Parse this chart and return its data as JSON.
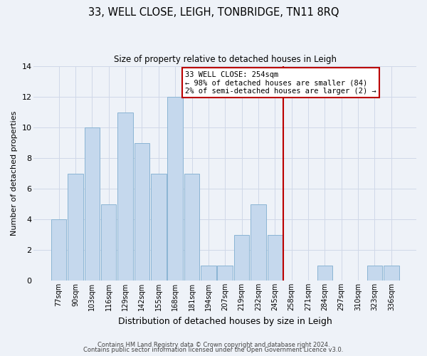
{
  "title": "33, WELL CLOSE, LEIGH, TONBRIDGE, TN11 8RQ",
  "subtitle": "Size of property relative to detached houses in Leigh",
  "xlabel": "Distribution of detached houses by size in Leigh",
  "ylabel": "Number of detached properties",
  "bar_labels": [
    "77sqm",
    "90sqm",
    "103sqm",
    "116sqm",
    "129sqm",
    "142sqm",
    "155sqm",
    "168sqm",
    "181sqm",
    "194sqm",
    "207sqm",
    "219sqm",
    "232sqm",
    "245sqm",
    "258sqm",
    "271sqm",
    "284sqm",
    "297sqm",
    "310sqm",
    "323sqm",
    "336sqm"
  ],
  "bar_values": [
    4,
    7,
    10,
    5,
    11,
    9,
    7,
    12,
    7,
    1,
    1,
    3,
    5,
    3,
    0,
    0,
    1,
    0,
    0,
    1,
    1
  ],
  "bar_color": "#c5d8ed",
  "bar_edgecolor": "#8ab4d4",
  "grid_color": "#d0d8e8",
  "background_color": "#eef2f8",
  "annotation_line1": "33 WELL CLOSE: 254sqm",
  "annotation_line2": "← 98% of detached houses are smaller (84)",
  "annotation_line3": "2% of semi-detached houses are larger (2) →",
  "vline_color": "#bb0000",
  "annotation_box_edgecolor": "#bb0000",
  "ylim": [
    0,
    14
  ],
  "yticks": [
    0,
    2,
    4,
    6,
    8,
    10,
    12,
    14
  ],
  "footer_line1": "Contains HM Land Registry data © Crown copyright and database right 2024.",
  "footer_line2": "Contains public sector information licensed under the Open Government Licence v3.0."
}
